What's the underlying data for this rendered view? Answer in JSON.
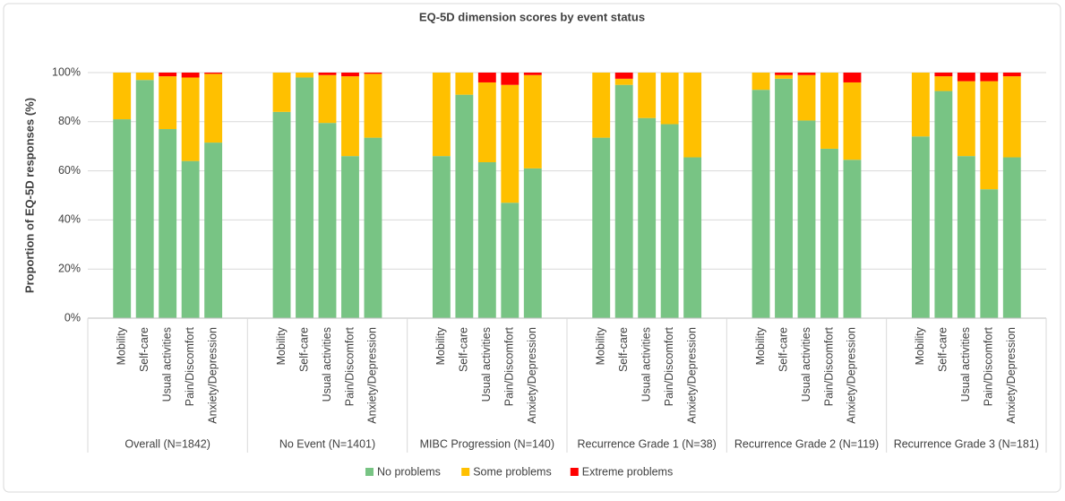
{
  "chart_data": {
    "type": "stacked_bar",
    "title": "EQ-5D dimension scores by event status",
    "y_label": "Proportion of EQ-5D responses (%)",
    "groups": [
      "Overall (N=1842)",
      "No Event (N=1401)",
      "MIBC Progression (N=140)",
      "Recurrence Grade 1 (N=38)",
      "Recurrence Grade 2 (N=119)",
      "Recurrence Grade 3 (N=181)"
    ],
    "categories": [
      "Mobility",
      "Self-care",
      "Usual activities",
      "Pain/Discomfort",
      "Anxiety/Depression",
      "Mobility",
      "Self-care",
      "Usual activities",
      "Pain/Discomfort",
      "Anxiety/Depression",
      "Mobility",
      "Self-care",
      "Usual activities",
      "Pain/Discomfort",
      "Anxiety/Depression",
      "Mobility",
      "Self-care",
      "Usual activities",
      "Pain/Discomfort",
      "Anxiety/Depression",
      "Mobility",
      "Self-care",
      "Usual activities",
      "Pain/Discomfort",
      "Anxiety/Depression",
      "Mobility",
      "Self-care",
      "Usual activities",
      "Pain/Discomfort",
      "Anxiety/Depression"
    ],
    "series": [
      {
        "name": "No problems",
        "color": "#78c484",
        "values": [
          81,
          97,
          77,
          64,
          71.5,
          84,
          98,
          79.5,
          66,
          73.5,
          66,
          91,
          63.5,
          47,
          61,
          73.5,
          95,
          81.5,
          79,
          65.5,
          93,
          97.5,
          80.5,
          69,
          64.5,
          74,
          92.5,
          66,
          52.5,
          65.5
        ]
      },
      {
        "name": "Some problems",
        "color": "#ffc000",
        "values": [
          19,
          3,
          21.5,
          34,
          28,
          16,
          2,
          19.5,
          32.5,
          26,
          34,
          9,
          32.5,
          48,
          38,
          26.5,
          2.5,
          18.5,
          21,
          34.5,
          7,
          1.5,
          18.5,
          31,
          31.5,
          26,
          6,
          30.5,
          44,
          33
        ]
      },
      {
        "name": "Extreme problems",
        "color": "#ff0000",
        "values": [
          0,
          0,
          1.5,
          2,
          0.5,
          0,
          0,
          1,
          1.5,
          0.5,
          0,
          0,
          4,
          5,
          1,
          0,
          2.5,
          0,
          0,
          0,
          0,
          1,
          1,
          0,
          4,
          0,
          1.5,
          3.5,
          3.5,
          1.5
        ]
      }
    ],
    "ylim": [
      0,
      100
    ],
    "yticks": [
      {
        "value": 0,
        "label": "0%"
      },
      {
        "value": 20,
        "label": "20%"
      },
      {
        "value": 40,
        "label": "40%"
      },
      {
        "value": 60,
        "label": "60%"
      },
      {
        "value": 80,
        "label": "80%"
      },
      {
        "value": 100,
        "label": "100%"
      }
    ],
    "grid": true,
    "legend": "bottom"
  }
}
